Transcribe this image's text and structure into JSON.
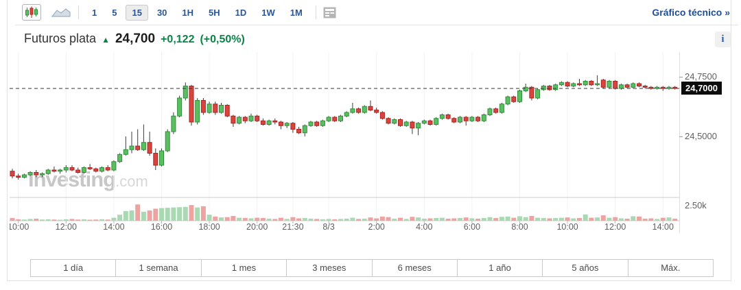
{
  "toolbar": {
    "chart_type_icons": {
      "candles": "candlestick-chart-icon",
      "area": "area-chart-icon"
    },
    "timeframes": [
      "1",
      "5",
      "15",
      "30",
      "1H",
      "5H",
      "1D",
      "1W",
      "1M"
    ],
    "selected_timeframe": "15",
    "news_icon": "news-panel-icon",
    "technical_link": "Gráfico técnico",
    "technical_link_arrow": "»"
  },
  "header": {
    "title": "Futuros plata",
    "up_arrow": "▲",
    "price": "24,700",
    "change": "+0,122",
    "change_pct": "(+0,50%)",
    "info_icon_glyph": "i"
  },
  "watermark": {
    "name": "Investing",
    "suffix": ".com"
  },
  "range_buttons": [
    "1 día",
    "1 semana",
    "1 mes",
    "3 meses",
    "6 meses",
    "1 año",
    "5 años",
    "Máx."
  ],
  "colors": {
    "accent_blue": "#2a5699",
    "link_blue": "#1f4e96",
    "green_text": "#0c8346",
    "candle_up_fill": "#5bbf61",
    "candle_up_stroke": "#2e8f3a",
    "candle_down_fill": "#d8453f",
    "candle_down_stroke": "#aa231e",
    "wick": "#3a3a3a",
    "volume_up": "#a9d9b2",
    "volume_down": "#efa3a0",
    "dashed_line": "#333333",
    "grid": "#f2f2f2",
    "axis_text": "#606060"
  },
  "chart_data": {
    "type": "candlestick+volume",
    "title": "Futuros plata",
    "interval": "15 min",
    "ylim": [
      24.3,
      24.85
    ],
    "current_price": {
      "value": 24.7,
      "label": "24,7000"
    },
    "price_ticks": [
      {
        "price": 24.75,
        "label": "24,7500"
      },
      {
        "price": 24.5,
        "label": "24,5000"
      }
    ],
    "volume_axis": {
      "label": "2.50k",
      "value_k": 2.5
    },
    "x_ticks": [
      {
        "i": 1,
        "label": "10:00"
      },
      {
        "i": 9,
        "label": "12:00"
      },
      {
        "i": 17,
        "label": "14:00"
      },
      {
        "i": 25,
        "label": "16:00"
      },
      {
        "i": 33,
        "label": "18:00"
      },
      {
        "i": 41,
        "label": "20:00"
      },
      {
        "i": 47,
        "label": "21:30"
      },
      {
        "i": 53,
        "label": "8/3"
      },
      {
        "i": 61,
        "label": "2:00"
      },
      {
        "i": 69,
        "label": "4:00"
      },
      {
        "i": 77,
        "label": "6:00"
      },
      {
        "i": 85,
        "label": "8:00"
      },
      {
        "i": 93,
        "label": "10:00"
      },
      {
        "i": 101,
        "label": "12:00"
      },
      {
        "i": 109,
        "label": "14:00"
      }
    ],
    "candles_ohlc": [
      [
        24.355,
        24.365,
        24.325,
        24.335
      ],
      [
        24.335,
        24.345,
        24.32,
        24.33
      ],
      [
        24.33,
        24.345,
        24.325,
        24.34
      ],
      [
        24.34,
        24.355,
        24.335,
        24.35
      ],
      [
        24.35,
        24.36,
        24.33,
        24.34
      ],
      [
        24.34,
        24.35,
        24.33,
        24.345
      ],
      [
        24.345,
        24.365,
        24.34,
        24.36
      ],
      [
        24.36,
        24.375,
        24.35,
        24.355
      ],
      [
        24.355,
        24.365,
        24.345,
        24.36
      ],
      [
        24.36,
        24.38,
        24.35,
        24.37
      ],
      [
        24.37,
        24.38,
        24.355,
        24.36
      ],
      [
        24.36,
        24.37,
        24.345,
        24.35
      ],
      [
        24.35,
        24.375,
        24.345,
        24.37
      ],
      [
        24.37,
        24.385,
        24.36,
        24.365
      ],
      [
        24.365,
        24.37,
        24.35,
        24.355
      ],
      [
        24.355,
        24.375,
        24.35,
        24.37
      ],
      [
        24.37,
        24.38,
        24.355,
        24.36
      ],
      [
        24.36,
        24.4,
        24.355,
        24.395
      ],
      [
        24.395,
        24.43,
        24.39,
        24.425
      ],
      [
        24.425,
        24.5,
        24.42,
        24.445
      ],
      [
        24.445,
        24.52,
        24.43,
        24.46
      ],
      [
        24.46,
        24.53,
        24.44,
        24.445
      ],
      [
        24.445,
        24.55,
        24.44,
        24.475
      ],
      [
        24.475,
        24.52,
        24.42,
        24.43
      ],
      [
        24.43,
        24.45,
        24.36,
        24.38
      ],
      [
        24.38,
        24.45,
        24.375,
        24.44
      ],
      [
        24.44,
        24.53,
        24.435,
        24.52
      ],
      [
        24.52,
        24.6,
        24.51,
        24.585
      ],
      [
        24.585,
        24.67,
        24.58,
        24.66
      ],
      [
        24.66,
        24.725,
        24.65,
        24.71
      ],
      [
        24.71,
        24.715,
        24.545,
        24.56
      ],
      [
        24.56,
        24.66,
        24.55,
        24.65
      ],
      [
        24.65,
        24.66,
        24.59,
        24.6
      ],
      [
        24.6,
        24.645,
        24.595,
        24.635
      ],
      [
        24.635,
        24.645,
        24.59,
        24.6
      ],
      [
        24.6,
        24.64,
        24.595,
        24.63
      ],
      [
        24.63,
        24.635,
        24.58,
        24.585
      ],
      [
        24.585,
        24.59,
        24.54,
        24.555
      ],
      [
        24.555,
        24.585,
        24.55,
        24.58
      ],
      [
        24.58,
        24.585,
        24.555,
        24.565
      ],
      [
        24.565,
        24.595,
        24.56,
        24.585
      ],
      [
        24.585,
        24.59,
        24.56,
        24.565
      ],
      [
        24.565,
        24.575,
        24.545,
        24.55
      ],
      [
        24.55,
        24.57,
        24.545,
        24.565
      ],
      [
        24.565,
        24.575,
        24.55,
        24.56
      ],
      [
        24.56,
        24.565,
        24.53,
        24.545
      ],
      [
        24.545,
        24.56,
        24.535,
        24.555
      ],
      [
        24.555,
        24.56,
        24.515,
        24.53
      ],
      [
        24.53,
        24.54,
        24.51,
        24.515
      ],
      [
        24.515,
        24.55,
        24.5,
        24.545
      ],
      [
        24.545,
        24.565,
        24.54,
        24.56
      ],
      [
        24.56,
        24.565,
        24.54,
        24.545
      ],
      [
        24.545,
        24.57,
        24.54,
        24.565
      ],
      [
        24.565,
        24.585,
        24.56,
        24.58
      ],
      [
        24.58,
        24.585,
        24.56,
        24.565
      ],
      [
        24.565,
        24.59,
        24.56,
        24.585
      ],
      [
        24.585,
        24.605,
        24.58,
        24.6
      ],
      [
        24.6,
        24.64,
        24.595,
        24.615
      ],
      [
        24.615,
        24.62,
        24.595,
        24.6
      ],
      [
        24.6,
        24.63,
        24.595,
        24.625
      ],
      [
        24.625,
        24.65,
        24.605,
        24.61
      ],
      [
        24.61,
        24.62,
        24.595,
        24.6
      ],
      [
        24.6,
        24.605,
        24.57,
        24.575
      ],
      [
        24.575,
        24.58,
        24.55,
        24.555
      ],
      [
        24.555,
        24.575,
        24.55,
        24.57
      ],
      [
        24.57,
        24.575,
        24.54,
        24.545
      ],
      [
        24.545,
        24.565,
        24.54,
        24.56
      ],
      [
        24.56,
        24.565,
        24.51,
        24.535
      ],
      [
        24.535,
        24.56,
        24.505,
        24.555
      ],
      [
        24.555,
        24.57,
        24.55,
        24.565
      ],
      [
        24.565,
        24.57,
        24.545,
        24.55
      ],
      [
        24.55,
        24.58,
        24.545,
        24.575
      ],
      [
        24.575,
        24.595,
        24.57,
        24.59
      ],
      [
        24.59,
        24.595,
        24.57,
        24.575
      ],
      [
        24.575,
        24.58,
        24.555,
        24.56
      ],
      [
        24.56,
        24.585,
        24.555,
        24.58
      ],
      [
        24.58,
        24.585,
        24.545,
        24.565
      ],
      [
        24.565,
        24.585,
        24.56,
        24.58
      ],
      [
        24.58,
        24.585,
        24.56,
        24.565
      ],
      [
        24.565,
        24.595,
        24.56,
        24.59
      ],
      [
        24.59,
        24.62,
        24.585,
        24.615
      ],
      [
        24.615,
        24.62,
        24.595,
        24.6
      ],
      [
        24.6,
        24.64,
        24.595,
        24.635
      ],
      [
        24.635,
        24.67,
        24.63,
        24.665
      ],
      [
        24.665,
        24.67,
        24.64,
        24.645
      ],
      [
        24.645,
        24.695,
        24.64,
        24.69
      ],
      [
        24.69,
        24.72,
        24.685,
        24.705
      ],
      [
        24.705,
        24.71,
        24.65,
        24.66
      ],
      [
        24.66,
        24.7,
        24.655,
        24.695
      ],
      [
        24.695,
        24.715,
        24.69,
        24.71
      ],
      [
        24.71,
        24.715,
        24.69,
        24.695
      ],
      [
        24.695,
        24.72,
        24.69,
        24.715
      ],
      [
        24.715,
        24.73,
        24.71,
        24.725
      ],
      [
        24.725,
        24.73,
        24.705,
        24.71
      ],
      [
        24.71,
        24.725,
        24.705,
        24.72
      ],
      [
        24.72,
        24.74,
        24.71,
        24.715
      ],
      [
        24.715,
        24.735,
        24.71,
        24.73
      ],
      [
        24.73,
        24.735,
        24.71,
        24.715
      ],
      [
        24.715,
        24.755,
        24.71,
        24.72
      ],
      [
        24.735,
        24.74,
        24.7,
        24.705
      ],
      [
        24.705,
        24.735,
        24.7,
        24.73
      ],
      [
        24.73,
        24.735,
        24.695,
        24.7
      ],
      [
        24.7,
        24.72,
        24.695,
        24.715
      ],
      [
        24.715,
        24.72,
        24.7,
        24.705
      ],
      [
        24.705,
        24.725,
        24.7,
        24.72
      ],
      [
        24.72,
        24.725,
        24.705,
        24.71
      ],
      [
        24.71,
        24.715,
        24.7,
        24.705
      ],
      [
        24.705,
        24.71,
        24.695,
        24.7
      ],
      [
        24.7,
        24.71,
        24.695,
        24.705
      ],
      [
        24.705,
        24.71,
        24.69,
        24.7
      ],
      [
        24.7,
        24.71,
        24.695,
        24.705
      ],
      [
        24.705,
        24.71,
        24.695,
        24.7
      ]
    ],
    "volumes_k": [
      0.45,
      0.25,
      0.2,
      0.3,
      0.35,
      0.2,
      0.25,
      0.2,
      0.15,
      0.25,
      0.3,
      0.2,
      0.25,
      0.15,
      0.2,
      0.25,
      0.2,
      0.5,
      1.0,
      1.6,
      1.7,
      2.7,
      1.5,
      1.7,
      2.0,
      2.1,
      2.15,
      2.2,
      2.25,
      2.3,
      2.6,
      2.2,
      2.4,
      1.0,
      0.7,
      0.55,
      0.6,
      0.8,
      0.5,
      0.45,
      0.4,
      0.5,
      0.45,
      0.35,
      0.3,
      0.5,
      0.3,
      0.6,
      0.4,
      0.45,
      0.35,
      0.3,
      0.25,
      0.3,
      0.25,
      0.3,
      0.35,
      0.5,
      0.3,
      0.35,
      0.55,
      0.4,
      0.7,
      0.6,
      0.35,
      0.5,
      0.3,
      0.65,
      0.55,
      0.35,
      0.4,
      0.45,
      0.5,
      0.35,
      0.4,
      0.45,
      0.55,
      0.4,
      0.35,
      0.45,
      0.6,
      0.45,
      0.65,
      0.7,
      0.5,
      0.75,
      0.6,
      0.8,
      0.5,
      0.45,
      0.4,
      0.45,
      0.5,
      0.55,
      0.4,
      0.45,
      1.05,
      0.5,
      0.55,
      0.9,
      0.5,
      0.6,
      0.4,
      0.35,
      0.75,
      0.7,
      0.35,
      0.4,
      0.3,
      0.5,
      0.55,
      0.35
    ]
  }
}
